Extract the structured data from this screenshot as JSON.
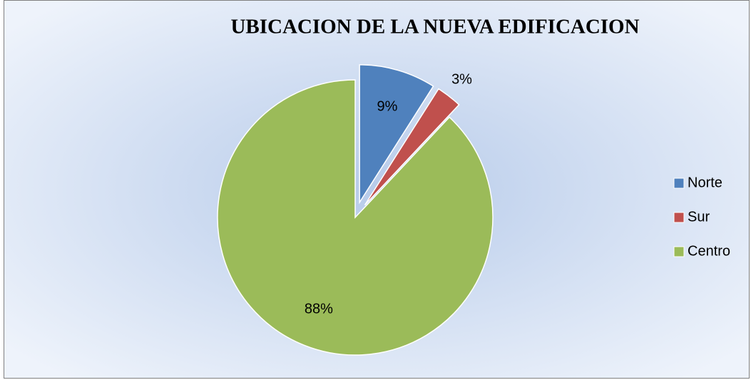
{
  "chart_data": {
    "type": "pie",
    "title": "UBICACION DE LA NUEVA EDIFICACION",
    "categories": [
      "Norte",
      "Sur",
      "Centro"
    ],
    "values": [
      9,
      3,
      88
    ],
    "value_labels": [
      "9%",
      "3%",
      "88%"
    ],
    "colors": [
      "#4f81bd",
      "#c0504d",
      "#9bbb59"
    ],
    "legend": "right"
  }
}
